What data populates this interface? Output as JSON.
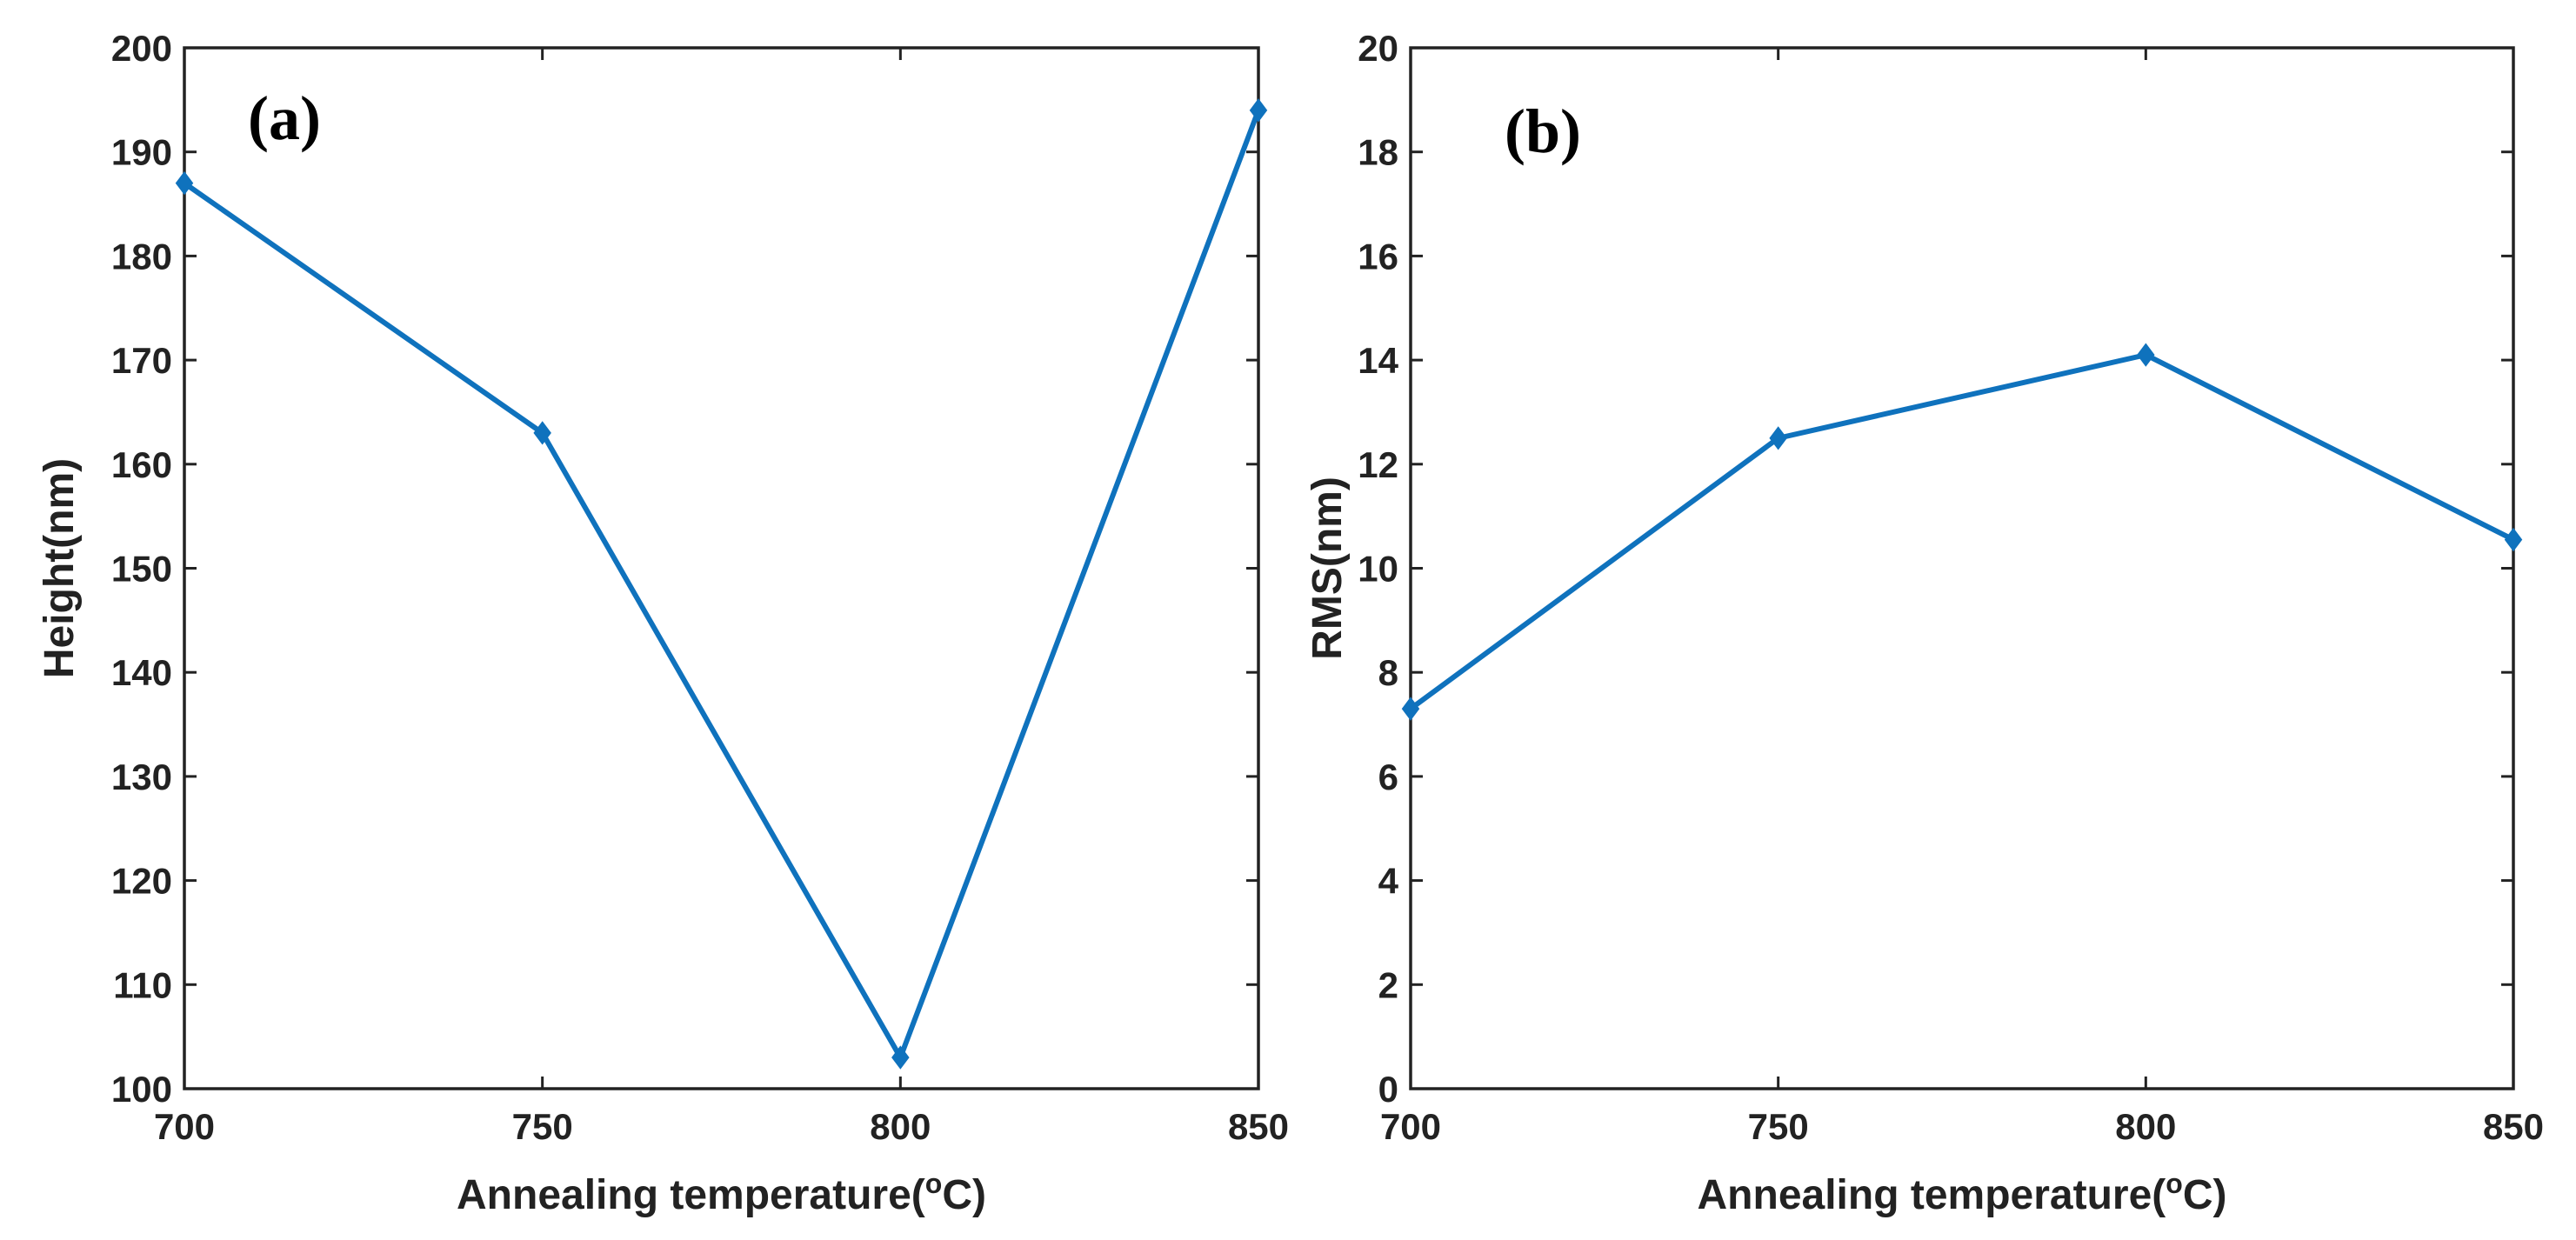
{
  "chart_data": [
    {
      "type": "line",
      "panel_label": "(a)",
      "xlabel": "Annealing temperature(",
      "xlabel_unit_sup": "o",
      "xlabel_unit": "C)",
      "ylabel": "Height(nm)",
      "x": [
        700,
        750,
        800,
        850
      ],
      "series": [
        {
          "name": "Height",
          "values": [
            187,
            163,
            103,
            194
          ],
          "color": "#0f72bd"
        }
      ],
      "xlim": [
        700,
        850
      ],
      "ylim": [
        100,
        200
      ],
      "xticks": [
        "700",
        "750",
        "800",
        "850"
      ],
      "yticks": [
        "100",
        "110",
        "120",
        "130",
        "140",
        "150",
        "160",
        "170",
        "180",
        "190",
        "200"
      ],
      "grid": false
    },
    {
      "type": "line",
      "panel_label": "(b)",
      "xlabel": "Annealing temperature(",
      "xlabel_unit_sup": "o",
      "xlabel_unit": "C)",
      "ylabel": "RMS(nm)",
      "x": [
        700,
        750,
        800,
        850
      ],
      "series": [
        {
          "name": "RMS",
          "values": [
            7.3,
            12.5,
            14.1,
            10.55
          ],
          "color": "#0f72bd"
        }
      ],
      "xlim": [
        700,
        850
      ],
      "ylim": [
        0,
        20
      ],
      "xticks": [
        "700",
        "750",
        "800",
        "850"
      ],
      "yticks": [
        "0",
        "2",
        "4",
        "6",
        "8",
        "10",
        "12",
        "14",
        "16",
        "18",
        "20"
      ],
      "grid": false
    }
  ]
}
